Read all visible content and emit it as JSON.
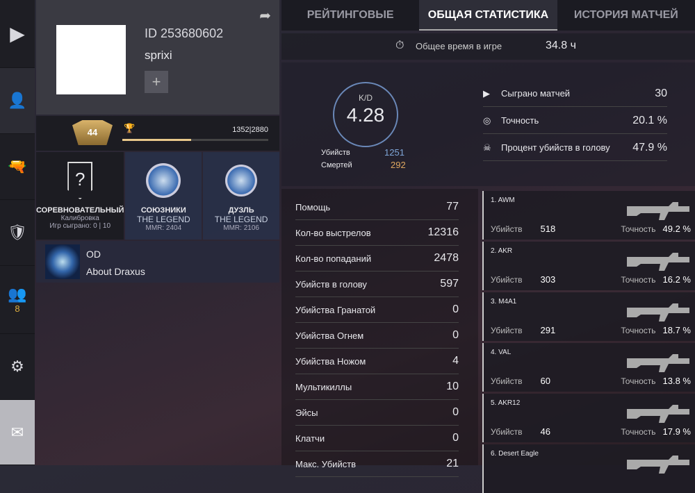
{
  "nav": {
    "friends_count": "8"
  },
  "profile": {
    "id": "ID 253680602",
    "name": "sprixi",
    "add": "+",
    "level": "44",
    "xp": "1352|2880",
    "xp_fraction": 0.47
  },
  "ranks": [
    {
      "title": "СОРЕВНОВАТЕЛЬНЫЙ",
      "sub": "Калибровка",
      "info": "Игр сыграно: 0 | 10",
      "icon": "?"
    },
    {
      "title": "СОЮЗНИКИ",
      "sub": "THE LEGEND",
      "info": "MMR: 2404"
    },
    {
      "title": "ДУЗЛЬ",
      "sub": "THE LEGEND",
      "info": "MMR: 2106"
    }
  ],
  "clan": {
    "tag": "OD",
    "name": "About Draxus"
  },
  "tabs": [
    "РЕЙТИНГОВЫЕ",
    "ОБЩАЯ СТАТИСТИКА",
    "ИСТОРИЯ МАТЧЕЙ"
  ],
  "playtime": {
    "label": "Общее время в игре",
    "value": "34.8 ч"
  },
  "kd": {
    "label": "K/D",
    "value": "4.28",
    "kills_label": "Убийств",
    "kills": "1251",
    "deaths_label": "Смертей",
    "deaths": "292",
    "kills_color": "#7fa6d8",
    "deaths_color": "#e0a860"
  },
  "summary": [
    {
      "label": "Сыграно матчей",
      "value": "30",
      "icon": "play"
    },
    {
      "label": "Точность",
      "value": "20.1 %",
      "icon": "target"
    },
    {
      "label": "Процент убийств в голову",
      "value": "47.9 %",
      "icon": "skull"
    }
  ],
  "stats": [
    {
      "label": "Помощь",
      "value": "77"
    },
    {
      "label": "Кол-во выстрелов",
      "value": "12316"
    },
    {
      "label": "Кол-во попаданий",
      "value": "2478"
    },
    {
      "label": "Убийств в голову",
      "value": "597"
    },
    {
      "label": "Убийства Гранатой",
      "value": "0"
    },
    {
      "label": "Убийства Огнем",
      "value": "0"
    },
    {
      "label": "Убийства Ножом",
      "value": "4"
    },
    {
      "label": "Мультикиллы",
      "value": "10"
    },
    {
      "label": "Эйсы",
      "value": "0"
    },
    {
      "label": "Клатчи",
      "value": "0"
    },
    {
      "label": "Макс. Убийств",
      "value": "21"
    }
  ],
  "weapons_labels": {
    "kills": "Убийств",
    "accuracy": "Точность"
  },
  "weapons": [
    {
      "name": "1. AWM",
      "kills": "518",
      "accuracy": "49.2 %"
    },
    {
      "name": "2. AKR",
      "kills": "303",
      "accuracy": "16.2 %"
    },
    {
      "name": "3. M4A1",
      "kills": "291",
      "accuracy": "18.7 %"
    },
    {
      "name": "4. VAL",
      "kills": "60",
      "accuracy": "13.8 %"
    },
    {
      "name": "5. AKR12",
      "kills": "46",
      "accuracy": "17.9 %"
    },
    {
      "name": "6. Desert Eagle",
      "kills": "",
      "accuracy": ""
    }
  ]
}
